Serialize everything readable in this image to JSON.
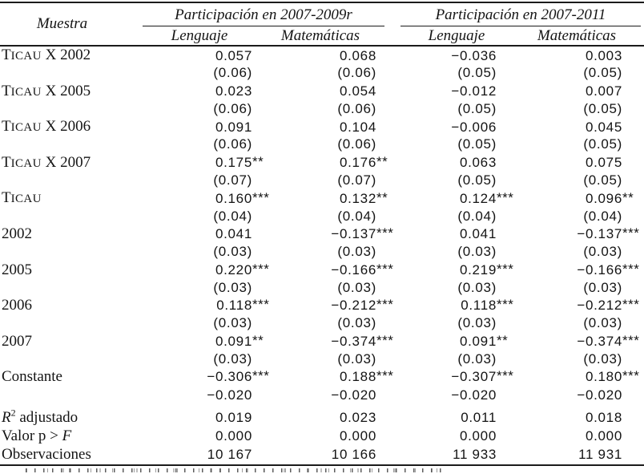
{
  "table": {
    "corner_label": "Muestra",
    "groups": [
      {
        "title": "Participación en 2007-2009r",
        "columns": [
          "Lenguaje",
          "Matemáticas"
        ]
      },
      {
        "title": "Participación en 2007-2011",
        "columns": [
          "Lenguaje",
          "Matemáticas"
        ]
      }
    ],
    "rows": [
      {
        "label": "TICAU X 2002",
        "coef": [
          "0.057",
          "0.068",
          "−0.036",
          "0.003"
        ],
        "se": [
          "(0.06)",
          "(0.06)",
          "(0.05)",
          "(0.05)"
        ]
      },
      {
        "label": "TICAU X 2005",
        "coef": [
          "0.023",
          "0.054",
          "−0.012",
          "0.007"
        ],
        "se": [
          "(0.06)",
          "(0.06)",
          "(0.05)",
          "(0.05)"
        ]
      },
      {
        "label": "TICAU X 2006",
        "coef": [
          "0.091",
          "0.104",
          "−0.006",
          "0.045"
        ],
        "se": [
          "(0.06)",
          "(0.06)",
          "(0.05)",
          "(0.05)"
        ]
      },
      {
        "label": "TICAU X 2007",
        "coef": [
          "0.175**",
          "0.176**",
          "0.063",
          "0.075"
        ],
        "se": [
          "(0.07)",
          "(0.07)",
          "(0.05)",
          "(0.05)"
        ]
      },
      {
        "label": "TICAU",
        "coef": [
          "0.160***",
          "0.132**",
          "0.124***",
          "0.096**"
        ],
        "se": [
          "(0.04)",
          "(0.04)",
          "(0.04)",
          "(0.04)"
        ]
      },
      {
        "label": "2002",
        "coef": [
          "0.041",
          "−0.137***",
          "0.041",
          "−0.137***"
        ],
        "se": [
          "(0.03)",
          "(0.03)",
          "(0.03)",
          "(0.03)"
        ]
      },
      {
        "label": "2005",
        "coef": [
          "0.220***",
          "−0.166***",
          "0.219***",
          "−0.166***"
        ],
        "se": [
          "(0.03)",
          "(0.03)",
          "(0.03)",
          "(0.03)"
        ]
      },
      {
        "label": "2006",
        "coef": [
          "0.118***",
          "−0.212***",
          "0.118***",
          "−0.212***"
        ],
        "se": [
          "(0.03)",
          "(0.03)",
          "(0.03)",
          "(0.03)"
        ]
      },
      {
        "label": "2007",
        "coef": [
          "0.091**",
          "−0.374***",
          "0.091**",
          "−0.374***"
        ],
        "se": [
          "(0.03)",
          "(0.03)",
          "(0.03)",
          "(0.03)"
        ]
      },
      {
        "label": "Constante",
        "coef": [
          "−0.306***",
          "0.188***",
          "−0.307***",
          "0.180***"
        ],
        "se": [
          "−0.020",
          "−0.020",
          "−0.020",
          "−0.020"
        ]
      }
    ],
    "stats": [
      {
        "label": "R² adjustado",
        "values": [
          "0.019",
          "0.023",
          "0.011",
          "0.018"
        ]
      },
      {
        "label": "Valor p > F",
        "values": [
          "0.000",
          "0.000",
          "0.000",
          "0.000"
        ]
      },
      {
        "label": "Observaciones",
        "values": [
          "10 167",
          "10 166",
          "11 933",
          "11 931"
        ]
      }
    ]
  }
}
